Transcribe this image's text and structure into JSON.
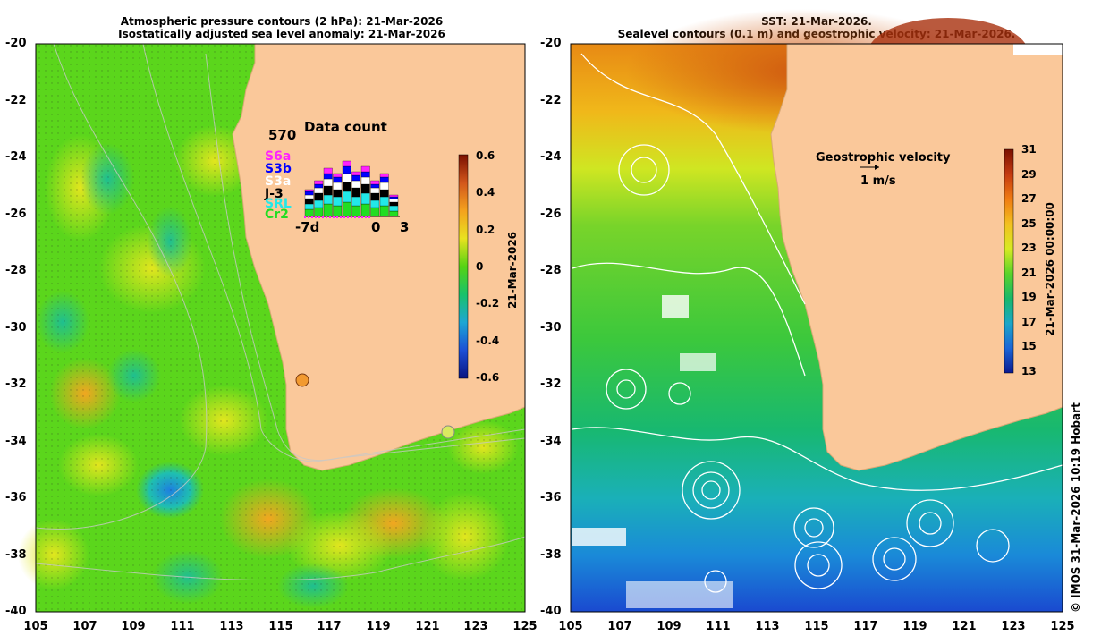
{
  "left_panel": {
    "title_line1": "Atmospheric pressure contours (2 hPa): 21-Mar-2026",
    "title_line2": "Isostatically adjusted sea level anomaly: 21-Mar-2026",
    "y_ticks": [
      "-20",
      "-22",
      "-24",
      "-26",
      "-28",
      "-30",
      "-32",
      "-34",
      "-36",
      "-38",
      "-40"
    ],
    "x_ticks": [
      "105",
      "107",
      "109",
      "111",
      "113",
      "115",
      "117",
      "119",
      "121",
      "123",
      "125"
    ],
    "colorbar": {
      "ticks": [
        "0.6",
        "0.4",
        "0.2",
        "0",
        "-0.2",
        "-0.4",
        "-0.6"
      ],
      "label": "21-Mar-2026",
      "colors": [
        "#7a1000",
        "#d2561b",
        "#f4a21e",
        "#e9e21f",
        "#55d314",
        "#18c26a",
        "#1ca6d4",
        "#1d4fd6",
        "#0a1480"
      ]
    },
    "inset": {
      "count": "570",
      "title": "Data count",
      "missions": [
        {
          "name": "S6a",
          "color": "#ff22ff"
        },
        {
          "name": "S3b",
          "color": "#0000ff"
        },
        {
          "name": "S3a",
          "color": "#ffffff"
        },
        {
          "name": "J-3",
          "color": "#000000"
        },
        {
          "name": "SRL",
          "color": "#22e8e8"
        },
        {
          "name": "Cr2",
          "color": "#22dd22"
        }
      ],
      "x_labels": [
        "-7d",
        "0",
        "3"
      ]
    }
  },
  "right_panel": {
    "title_line1": "SST: 21-Mar-2026.",
    "title_line2": "Sealevel contours (0.1 m) and geostrophic velocity: 21-Mar-2026.",
    "y_ticks": [
      "-20",
      "-22",
      "-24",
      "-26",
      "-28",
      "-30",
      "-32",
      "-34",
      "-36",
      "-38",
      "-40"
    ],
    "x_ticks": [
      "105",
      "107",
      "109",
      "111",
      "113",
      "115",
      "117",
      "119",
      "121",
      "123",
      "125"
    ],
    "velocity_label": "Geostrophic velocity",
    "velocity_scale": "1 m/s",
    "colorbar": {
      "ticks": [
        "31",
        "29",
        "27",
        "25",
        "23",
        "21",
        "19",
        "17",
        "15",
        "13"
      ],
      "label": "21-Mar-2026 00:00:00",
      "colors": [
        "#7a1000",
        "#c43a10",
        "#f07c12",
        "#f2c020",
        "#d8ea22",
        "#5ad42a",
        "#18b86a",
        "#1aa6c8",
        "#1a66d8",
        "#0a1a90"
      ]
    }
  },
  "credit": "© IMOS 31-Mar-2026 10:19 Hobart"
}
